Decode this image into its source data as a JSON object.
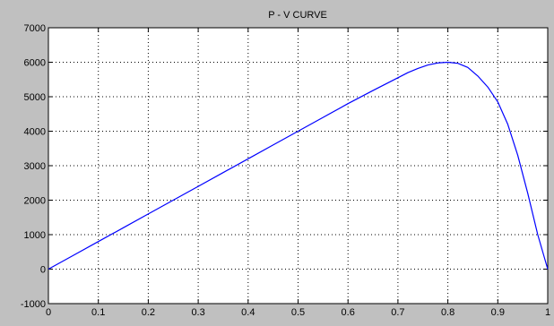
{
  "chart_data": {
    "type": "line",
    "title": "P - V CURVE",
    "xlabel": "",
    "ylabel": "",
    "xlim": [
      0,
      1
    ],
    "ylim": [
      -1000,
      7000
    ],
    "x_ticks": [
      0,
      0.1,
      0.2,
      0.3,
      0.4,
      0.5,
      0.6,
      0.7,
      0.8,
      0.9,
      1
    ],
    "x_tick_labels": [
      "0",
      "0.1",
      "0.2",
      "0.3",
      "0.4",
      "0.5",
      "0.6",
      "0.7",
      "0.8",
      "0.9",
      "1"
    ],
    "y_ticks": [
      -1000,
      0,
      1000,
      2000,
      3000,
      4000,
      5000,
      6000,
      7000
    ],
    "y_tick_labels": [
      "-1000",
      "0",
      "1000",
      "2000",
      "3000",
      "4000",
      "5000",
      "6000",
      "7000"
    ],
    "grid": true,
    "series": [
      {
        "color": "#0000ff",
        "x": [
          0,
          0.05,
          0.1,
          0.15,
          0.2,
          0.25,
          0.3,
          0.35,
          0.4,
          0.45,
          0.5,
          0.55,
          0.6,
          0.65,
          0.7,
          0.72,
          0.74,
          0.76,
          0.78,
          0.8,
          0.82,
          0.84,
          0.86,
          0.88,
          0.9,
          0.92,
          0.94,
          0.96,
          0.98,
          0.99,
          1.0
        ],
        "y": [
          0,
          400,
          800,
          1200,
          1600,
          2000,
          2400,
          2800,
          3200,
          3600,
          4000,
          4400,
          4800,
          5180,
          5550,
          5700,
          5820,
          5920,
          5980,
          6000,
          5970,
          5850,
          5600,
          5280,
          4850,
          4200,
          3300,
          2200,
          1000,
          500,
          0
        ]
      }
    ]
  }
}
